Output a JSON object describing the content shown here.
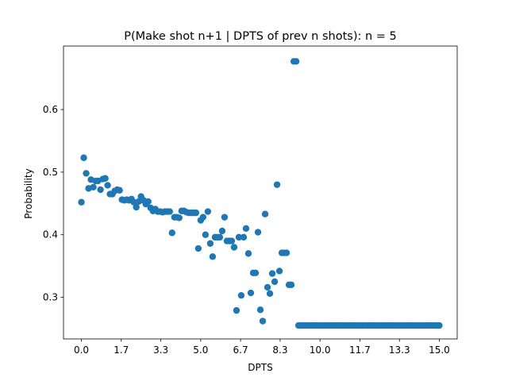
{
  "chart_data": {
    "type": "scatter",
    "title": "P(Make shot n+1 | DPTS of prev n shots): n = 5",
    "xlabel": "DPTS",
    "ylabel": "Probability",
    "xlim": [
      -0.75,
      15.75
    ],
    "ylim": [
      0.2335,
      0.7015
    ],
    "xticks": [
      0.0,
      1.67,
      3.33,
      5.0,
      6.67,
      8.33,
      10.0,
      11.67,
      13.33,
      15.0
    ],
    "xtick_labels": [
      "0.0",
      "1.7",
      "3.3",
      "5.0",
      "6.7",
      "8.3",
      "10.0",
      "11.7",
      "13.3",
      "15.0"
    ],
    "yticks": [
      0.3,
      0.4,
      0.5,
      0.6
    ],
    "ytick_labels": [
      "0.3",
      "0.4",
      "0.5",
      "0.6"
    ],
    "grid": false,
    "color": "#1f77b4",
    "points": [
      [
        0.0,
        0.452
      ],
      [
        0.1,
        0.523
      ],
      [
        0.2,
        0.498
      ],
      [
        0.3,
        0.474
      ],
      [
        0.4,
        0.488
      ],
      [
        0.5,
        0.476
      ],
      [
        0.6,
        0.486
      ],
      [
        0.7,
        0.486
      ],
      [
        0.8,
        0.472
      ],
      [
        0.9,
        0.489
      ],
      [
        1.0,
        0.49
      ],
      [
        1.1,
        0.479
      ],
      [
        1.2,
        0.465
      ],
      [
        1.3,
        0.465
      ],
      [
        1.4,
        0.47
      ],
      [
        1.5,
        0.472
      ],
      [
        1.6,
        0.471
      ],
      [
        1.7,
        0.456
      ],
      [
        1.8,
        0.455
      ],
      [
        1.9,
        0.456
      ],
      [
        2.0,
        0.455
      ],
      [
        2.1,
        0.457
      ],
      [
        2.2,
        0.452
      ],
      [
        2.3,
        0.444
      ],
      [
        2.4,
        0.453
      ],
      [
        2.5,
        0.461
      ],
      [
        2.6,
        0.455
      ],
      [
        2.7,
        0.449
      ],
      [
        2.8,
        0.453
      ],
      [
        2.9,
        0.443
      ],
      [
        3.0,
        0.438
      ],
      [
        3.1,
        0.441
      ],
      [
        3.2,
        0.437
      ],
      [
        3.3,
        0.437
      ],
      [
        3.4,
        0.436
      ],
      [
        3.5,
        0.437
      ],
      [
        3.6,
        0.437
      ],
      [
        3.7,
        0.437
      ],
      [
        3.8,
        0.403
      ],
      [
        3.9,
        0.428
      ],
      [
        4.0,
        0.428
      ],
      [
        4.1,
        0.427
      ],
      [
        4.2,
        0.438
      ],
      [
        4.3,
        0.438
      ],
      [
        4.4,
        0.436
      ],
      [
        4.5,
        0.435
      ],
      [
        4.6,
        0.435
      ],
      [
        4.7,
        0.435
      ],
      [
        4.8,
        0.435
      ],
      [
        4.9,
        0.378
      ],
      [
        5.0,
        0.423
      ],
      [
        5.1,
        0.428
      ],
      [
        5.2,
        0.4
      ],
      [
        5.3,
        0.437
      ],
      [
        5.4,
        0.386
      ],
      [
        5.5,
        0.365
      ],
      [
        5.6,
        0.396
      ],
      [
        5.7,
        0.396
      ],
      [
        5.8,
        0.396
      ],
      [
        5.9,
        0.406
      ],
      [
        6.0,
        0.428
      ],
      [
        6.1,
        0.39
      ],
      [
        6.2,
        0.39
      ],
      [
        6.3,
        0.39
      ],
      [
        6.4,
        0.38
      ],
      [
        6.5,
        0.279
      ],
      [
        6.6,
        0.396
      ],
      [
        6.7,
        0.303
      ],
      [
        6.8,
        0.396
      ],
      [
        6.9,
        0.41
      ],
      [
        7.0,
        0.37
      ],
      [
        7.1,
        0.307
      ],
      [
        7.2,
        0.339
      ],
      [
        7.3,
        0.339
      ],
      [
        7.4,
        0.404
      ],
      [
        7.5,
        0.28
      ],
      [
        7.6,
        0.262
      ],
      [
        7.7,
        0.433
      ],
      [
        7.8,
        0.316
      ],
      [
        7.9,
        0.306
      ],
      [
        8.0,
        0.338
      ],
      [
        8.1,
        0.325
      ],
      [
        8.2,
        0.48
      ],
      [
        8.3,
        0.342
      ],
      [
        8.4,
        0.371
      ],
      [
        8.5,
        0.371
      ],
      [
        8.6,
        0.371
      ],
      [
        8.7,
        0.32
      ],
      [
        8.8,
        0.32
      ],
      [
        8.9,
        0.677
      ],
      [
        9.0,
        0.677
      ]
    ],
    "tail_series": {
      "x_start": 9.1,
      "x_end": 15.0,
      "step": 0.1,
      "y": 0.255
    }
  }
}
